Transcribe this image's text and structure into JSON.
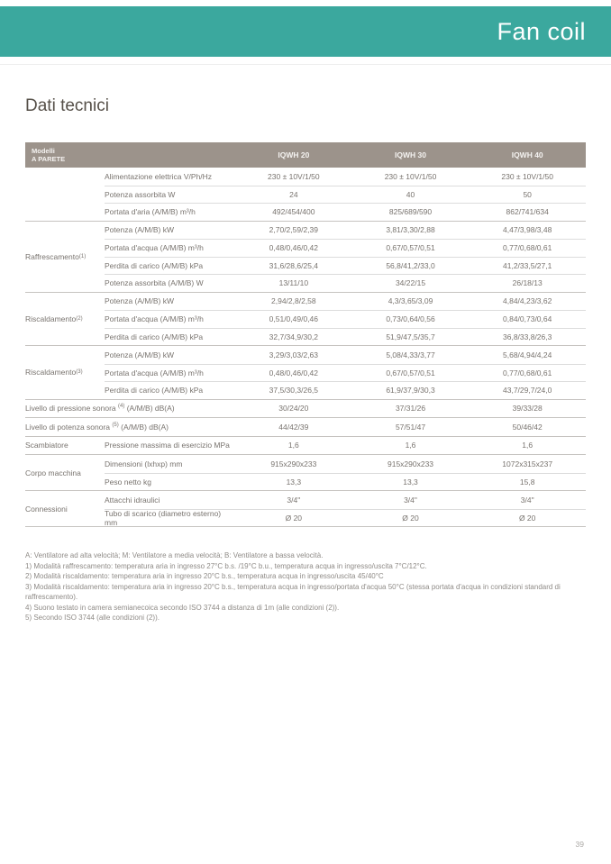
{
  "page": {
    "header_title": "Fan coil",
    "section_title": "Dati tecnici",
    "page_number": "39",
    "colors": {
      "teal": "#3BA89E",
      "taupe": "#9C938B"
    }
  },
  "table": {
    "header": {
      "col0_line1": "Modelli",
      "col0_line2": "A PARETE",
      "models": [
        "IQWH 20",
        "IQWH 30",
        "IQWH 40"
      ]
    },
    "groups": [
      {
        "label": "",
        "sup": "",
        "rows": [
          {
            "param": "Alimentazione elettrica V/Ph/Hz",
            "values": [
              "230 ± 10V/1/50",
              "230 ± 10V/1/50",
              "230 ± 10V/1/50"
            ]
          },
          {
            "param": "Potenza assorbita W",
            "values": [
              "24",
              "40",
              "50"
            ]
          },
          {
            "param": "Portata d'aria (A/M/B) m³/h",
            "values": [
              "492/454/400",
              "825/689/590",
              "862/741/634"
            ]
          }
        ]
      },
      {
        "label": "Raffrescamento",
        "sup": "(1)",
        "rows": [
          {
            "param": "Potenza (A/M/B) kW",
            "values": [
              "2,70/2,59/2,39",
              "3,81/3,30/2,88",
              "4,47/3,98/3,48"
            ]
          },
          {
            "param": "Portata d'acqua (A/M/B) m³/h",
            "values": [
              "0,48/0,46/0,42",
              "0,67/0,57/0,51",
              "0,77/0,68/0,61"
            ]
          },
          {
            "param": "Perdita di carico (A/M/B) kPa",
            "values": [
              "31,6/28,6/25,4",
              "56,8/41,2/33,0",
              "41,2/33,5/27,1"
            ]
          },
          {
            "param": "Potenza assorbita (A/M/B) W",
            "values": [
              "13/11/10",
              "34/22/15",
              "26/18/13"
            ]
          }
        ]
      },
      {
        "label": "Riscaldamento",
        "sup": "(2)",
        "rows": [
          {
            "param": "Potenza (A/M/B) kW",
            "values": [
              "2,94/2,8/2,58",
              "4,3/3,65/3,09",
              "4,84/4,23/3,62"
            ]
          },
          {
            "param": "Portata d'acqua (A/M/B) m³/h",
            "values": [
              "0,51/0,49/0,46",
              "0,73/0,64/0,56",
              "0,84/0,73/0,64"
            ]
          },
          {
            "param": "Perdita di carico (A/M/B) kPa",
            "values": [
              "32,7/34,9/30,2",
              "51,9/47,5/35,7",
              "36,8/33,8/26,3"
            ]
          }
        ]
      },
      {
        "label": "Riscaldamento",
        "sup": "(3)",
        "rows": [
          {
            "param": "Potenza (A/M/B) kW",
            "values": [
              "3,29/3,03/2,63",
              "5,08/4,33/3,77",
              "5,68/4,94/4,24"
            ]
          },
          {
            "param": "Portata d'acqua (A/M/B) m³/h",
            "values": [
              "0,48/0,46/0,42",
              "0,67/0,57/0,51",
              "0,77/0,68/0,61"
            ]
          },
          {
            "param": "Perdita di carico (A/M/B) kPa",
            "values": [
              "37,5/30,3/26,5",
              "61,9/37,9/30,3",
              "43,7/29,7/24,0"
            ]
          }
        ]
      },
      {
        "span_label": {
          "prefix": "Livello di pressione sonora ",
          "sup": "(4)",
          "suffix": " (A/M/B) dB(A)"
        },
        "rows": [
          {
            "values": [
              "30/24/20",
              "37/31/26",
              "39/33/28"
            ]
          }
        ]
      },
      {
        "span_label": {
          "prefix": "Livello di potenza sonora ",
          "sup": "(5)",
          "suffix": " (A/M/B) dB(A)"
        },
        "rows": [
          {
            "values": [
              "44/42/39",
              "57/51/47",
              "50/46/42"
            ]
          }
        ]
      },
      {
        "label": "Scambiatore",
        "sup": "",
        "rows": [
          {
            "param": "Pressione massima di esercizio MPa",
            "values": [
              "1,6",
              "1,6",
              "1,6"
            ]
          }
        ]
      },
      {
        "label": "Corpo macchina",
        "sup": "",
        "rows": [
          {
            "param": "Dimensioni (lxhxp) mm",
            "values": [
              "915x290x233",
              "915x290x233",
              "1072x315x237"
            ]
          },
          {
            "param": "Peso netto kg",
            "values": [
              "13,3",
              "13,3",
              "15,8"
            ]
          }
        ]
      },
      {
        "label": "Connessioni",
        "sup": "",
        "rows": [
          {
            "param": "Attacchi idraulici",
            "values": [
              "3/4\"",
              "3/4\"",
              "3/4\""
            ]
          },
          {
            "param": "Tubo di scarico (diametro esterno) mm",
            "values": [
              "Ø 20",
              "Ø 20",
              "Ø 20"
            ]
          }
        ]
      }
    ]
  },
  "footnotes": [
    "A: Ventilatore ad alta velocità; M: Ventilatore a media velocità; B: Ventilatore a bassa velocità.",
    "1) Modalità raffrescamento: temperatura aria in ingresso 27°C b.s. /19°C b.u., temperatura acqua in ingresso/uscita 7°C/12°C.",
    "2) Modalità riscaldamento: temperatura aria in ingresso 20°C b.s., temperatura acqua in ingresso/uscita 45/40°C",
    "3) Modalità riscaldamento: temperatura aria in ingresso 20°C b.s., temperatura acqua in ingresso/portata d'acqua 50°C (stessa portata d'acqua in condizioni standard di raffrescamento).",
    "4) Suono testato in camera semianecoica secondo ISO 3744 a distanza di 1m (alle condizioni (2)).",
    "5) Secondo ISO 3744 (alle condizioni (2))."
  ]
}
